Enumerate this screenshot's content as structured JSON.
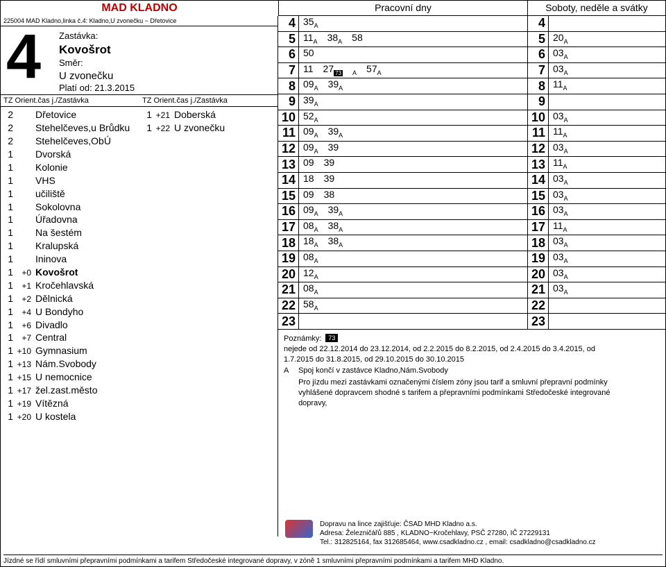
{
  "header": {
    "title": "MAD KLADNO",
    "workdays": "Pracovní dny",
    "weekends": "Soboty, neděle a svátky",
    "linecode": "225004 MAD Kladno,linka č.4: Kladno,U zvonečku − Dřetovice"
  },
  "big_number": "4",
  "stopinfo": {
    "stop_label": "Zastávka:",
    "stop_name": "Kovošrot",
    "dir_label": "Směr:",
    "dir_name": "U zvonečku",
    "valid": "Platí od: 21.3.2015"
  },
  "col_headers": {
    "left": "TZ Orient.čas j./Zastávka",
    "right": "TZ Orient.čas j./Zastávka"
  },
  "stops_left": [
    {
      "t": "2",
      "off": "",
      "name": "Dřetovice"
    },
    {
      "t": "2",
      "off": "",
      "name": "Stehelčeves,u Brůdku"
    },
    {
      "t": "2",
      "off": "",
      "name": "Stehelčeves,ObÚ"
    },
    {
      "t": "1",
      "off": "",
      "name": "Dvorská"
    },
    {
      "t": "1",
      "off": "",
      "name": "Kolonie"
    },
    {
      "t": "1",
      "off": "",
      "name": "VHS"
    },
    {
      "t": "1",
      "off": "",
      "name": "učiliště"
    },
    {
      "t": "1",
      "off": "",
      "name": "Sokolovna"
    },
    {
      "t": "1",
      "off": "",
      "name": "Úřadovna"
    },
    {
      "t": "1",
      "off": "",
      "name": "Na šestém"
    },
    {
      "t": "1",
      "off": "",
      "name": "Kralupská"
    },
    {
      "t": "1",
      "off": "",
      "name": "Ininova"
    },
    {
      "t": "1",
      "off": "+0",
      "name": "Kovošrot",
      "bold": true
    },
    {
      "t": "1",
      "off": "+1",
      "name": "Kročehlavská"
    },
    {
      "t": "1",
      "off": "+2",
      "name": "Dělnická"
    },
    {
      "t": "1",
      "off": "+4",
      "name": "U Bondyho"
    },
    {
      "t": "1",
      "off": "+6",
      "name": "Divadlo"
    },
    {
      "t": "1",
      "off": "+7",
      "name": "Central"
    },
    {
      "t": "1",
      "off": "+10",
      "name": "Gymnasium"
    },
    {
      "t": "1",
      "off": "+13",
      "name": "Nám.Svobody"
    },
    {
      "t": "1",
      "off": "+15",
      "name": "U nemocnice"
    },
    {
      "t": "1",
      "off": "+17",
      "name": "žel.zast.město"
    },
    {
      "t": "1",
      "off": "+19",
      "name": "Vítězná"
    },
    {
      "t": "1",
      "off": "+20",
      "name": "U kostela"
    }
  ],
  "stops_right": [
    {
      "t": "1",
      "off": "+21",
      "name": "Doberská"
    },
    {
      "t": "1",
      "off": "+22",
      "name": "U zvonečku"
    }
  ],
  "hours": [
    "4",
    "5",
    "6",
    "7",
    "8",
    "9",
    "10",
    "11",
    "12",
    "13",
    "14",
    "15",
    "16",
    "17",
    "18",
    "19",
    "20",
    "21",
    "22",
    "23"
  ],
  "work": [
    [
      {
        "m": "35",
        "s": "A"
      }
    ],
    [
      {
        "m": "11",
        "s": "A"
      },
      {
        "m": "38",
        "s": "A"
      },
      {
        "m": "58"
      }
    ],
    [
      {
        "m": "50"
      }
    ],
    [
      {
        "m": "11"
      },
      {
        "m": "27",
        "s": "73",
        "box": true
      },
      {
        "m": "",
        "s": "A",
        "pad": true
      },
      {
        "m": "57",
        "s": "A"
      }
    ],
    [
      {
        "m": "09",
        "s": "A"
      },
      {
        "m": "39",
        "s": "A"
      }
    ],
    [
      {
        "m": "39",
        "s": "A"
      }
    ],
    [
      {
        "m": "52",
        "s": "A"
      }
    ],
    [
      {
        "m": "09",
        "s": "A"
      },
      {
        "m": "39",
        "s": "A"
      }
    ],
    [
      {
        "m": "09",
        "s": "A"
      },
      {
        "m": "39"
      }
    ],
    [
      {
        "m": "09"
      },
      {
        "m": "39"
      }
    ],
    [
      {
        "m": "18"
      },
      {
        "m": "39"
      }
    ],
    [
      {
        "m": "09"
      },
      {
        "m": "38"
      }
    ],
    [
      {
        "m": "09",
        "s": "A"
      },
      {
        "m": "39",
        "s": "A"
      }
    ],
    [
      {
        "m": "08",
        "s": "A"
      },
      {
        "m": "38",
        "s": "A"
      }
    ],
    [
      {
        "m": "18",
        "s": "A"
      },
      {
        "m": "38",
        "s": "A"
      }
    ],
    [
      {
        "m": "08",
        "s": "A"
      }
    ],
    [
      {
        "m": "12",
        "s": "A"
      }
    ],
    [
      {
        "m": "08",
        "s": "A"
      }
    ],
    [
      {
        "m": "58",
        "s": "A"
      }
    ],
    []
  ],
  "wknd": [
    [],
    [
      {
        "m": "20",
        "s": "A"
      }
    ],
    [
      {
        "m": "03",
        "s": "A"
      }
    ],
    [
      {
        "m": "03",
        "s": "A"
      }
    ],
    [
      {
        "m": "11",
        "s": "A"
      }
    ],
    [],
    [
      {
        "m": "03",
        "s": "A"
      }
    ],
    [
      {
        "m": "11",
        "s": "A"
      }
    ],
    [
      {
        "m": "03",
        "s": "A"
      }
    ],
    [
      {
        "m": "11",
        "s": "A"
      }
    ],
    [
      {
        "m": "03",
        "s": "A"
      }
    ],
    [
      {
        "m": "03",
        "s": "A"
      }
    ],
    [
      {
        "m": "03",
        "s": "A"
      }
    ],
    [
      {
        "m": "11",
        "s": "A"
      }
    ],
    [
      {
        "m": "03",
        "s": "A"
      }
    ],
    [
      {
        "m": "03",
        "s": "A"
      }
    ],
    [
      {
        "m": "03",
        "s": "A"
      }
    ],
    [
      {
        "m": "03",
        "s": "A"
      }
    ],
    [],
    []
  ],
  "notes": {
    "label": "Poznámky:",
    "items": [
      {
        "key": "73",
        "box": true,
        "text": "nejede od 22.12.2014 do 23.12.2014, od 2.2.2015 do 8.2.2015, od 2.4.2015 do 3.4.2015, od 1.7.2015 do 31.8.2015, od 29.10.2015 do 30.10.2015"
      },
      {
        "key": "A",
        "text": "Spoj končí v zastávce Kladno,Nám.Svobody"
      },
      {
        "key": "",
        "text": "Pro jízdu mezi zastávkami označenými číslem zóny jsou tarif a smluvní přepravní podmínky vyhlášené dopravcem shodné s tarifem a přepravními podmínkami Středočeské integrované dopravy,"
      }
    ]
  },
  "operator": {
    "line1": "Dopravu na lince zajišťuje: ČSAD MHD Kladno a.s.",
    "line2": "Adresa: Železničářů 885 , KLADNO−Kročehlavy, PSČ 27280, IČ 27229131",
    "line3": "Tel.: 312825164, fax 312685464, www.csadkladno.cz , email: csadkladno@csadkladno.cz"
  },
  "tariff": "Jízdné se řídí smluvními přepravními podmínkami a tarifem Středočeské integrované dopravy, v zóně 1 smluvními přepravními podmínkami a tarifem MHD Kladno."
}
